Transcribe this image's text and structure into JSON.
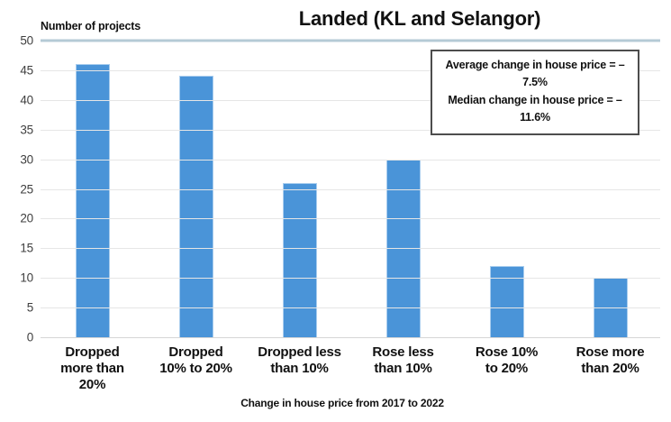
{
  "colors": {
    "bar_fill": "#4a94d8",
    "bar_edge": "#a9cdee",
    "gridline": "#e6e6e6",
    "axis_line": "#d6d6d6",
    "top_line": "#b5cad6",
    "tick_text": "#404040",
    "annotation_border": "#4d4d4d"
  },
  "chart_data": {
    "type": "bar",
    "title": "Landed (KL and Selangor)",
    "ylabel": "Number of projects",
    "xlabel": "Change in house price from 2017 to 2022",
    "categories": [
      "Dropped more than 20%",
      "Dropped 10% to 20%",
      "Dropped less than 10%",
      "Rose less than 10%",
      "Rose 10% to 20%",
      "Rose more than 20%"
    ],
    "category_labels_wrapped": [
      "Dropped\nmore than\n20%",
      "Dropped\n10% to 20%",
      "Dropped less\nthan 10%",
      "Rose less\nthan 10%",
      "Rose 10%\nto 20%",
      "Rose more\nthan 20%"
    ],
    "values": [
      46,
      44,
      26,
      30,
      12,
      10
    ],
    "ylim": [
      0,
      50
    ],
    "ytick_step": 5,
    "grid": true,
    "legend": null,
    "annotations": [
      "Average change in house price = –7.5%",
      "Median change in house price = – 11.6%"
    ]
  }
}
